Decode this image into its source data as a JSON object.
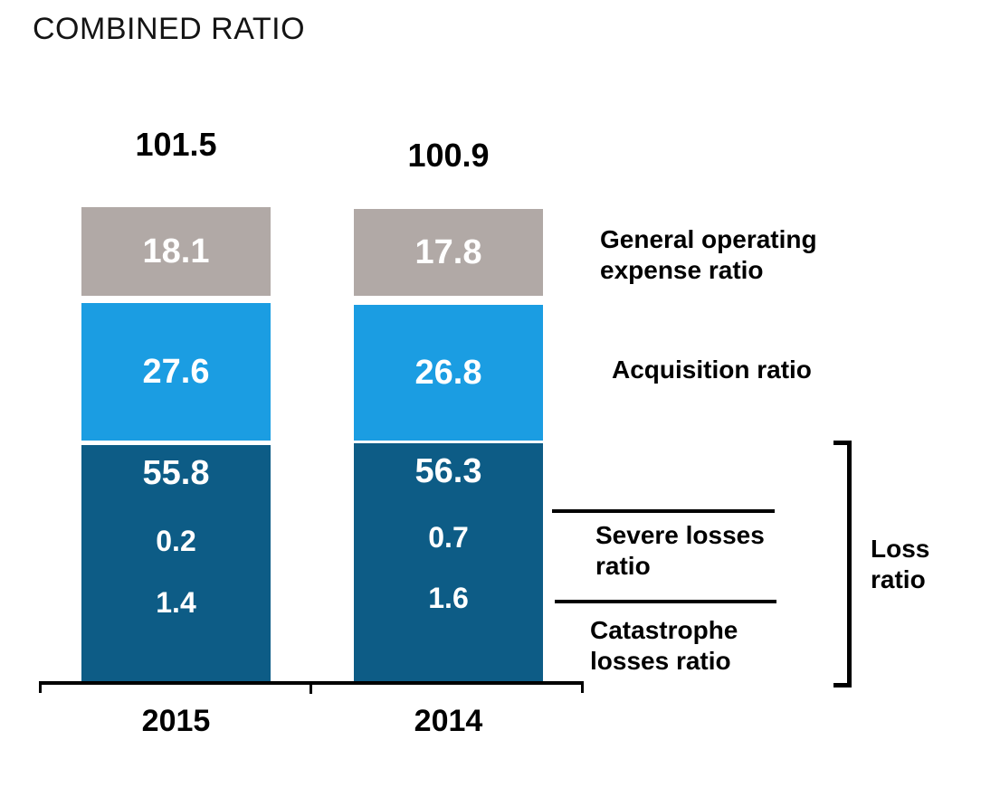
{
  "title": "COMBINED RATIO",
  "colors": {
    "general_bg": "#b1a9a6",
    "acquisition_bg": "#1b9de2",
    "loss_bg": "#0d5c86",
    "value_text": "#ffffff",
    "axis": "#000000"
  },
  "chart_data": {
    "type": "bar",
    "stacked": true,
    "title": "COMBINED RATIO",
    "categories": [
      "2015",
      "2014"
    ],
    "totals": [
      101.5,
      100.9
    ],
    "series": [
      {
        "name": "General operating expense ratio",
        "values": [
          18.1,
          17.8
        ],
        "color": "#b1a9a6"
      },
      {
        "name": "Acquisition ratio",
        "values": [
          27.6,
          26.8
        ],
        "color": "#1b9de2"
      },
      {
        "name": "Loss ratio",
        "values": [
          55.8,
          56.3
        ],
        "color": "#0d5c86"
      },
      {
        "name": "Severe losses ratio",
        "values": [
          0.2,
          0.7
        ],
        "color": "#0d5c86"
      },
      {
        "name": "Catastrophe losses ratio",
        "values": [
          1.4,
          1.6
        ],
        "color": "#0d5c86"
      }
    ],
    "notes": "Loss ratio bracket groups the dark blue block: main loss value plus severe losses ratio and catastrophe losses ratio sub-values",
    "legend_position": "right",
    "grid": false,
    "xlabel": "",
    "ylabel": ""
  },
  "bars": {
    "y2015": {
      "label": "2015",
      "total": "101.5",
      "general": "18.1",
      "acquisition": "27.6",
      "loss_main": "55.8",
      "severe": "0.2",
      "catastrophe": "1.4"
    },
    "y2014": {
      "label": "2014",
      "total": "100.9",
      "general": "17.8",
      "acquisition": "26.8",
      "loss_main": "56.3",
      "severe": "0.7",
      "catastrophe": "1.6"
    }
  },
  "annotations": {
    "general": "General operating expense ratio",
    "acquisition": "Acquisition ratio",
    "severe": "Severe losses ratio",
    "catastrophe": "Catastrophe losses ratio",
    "loss_bracket": "Loss ratio"
  }
}
